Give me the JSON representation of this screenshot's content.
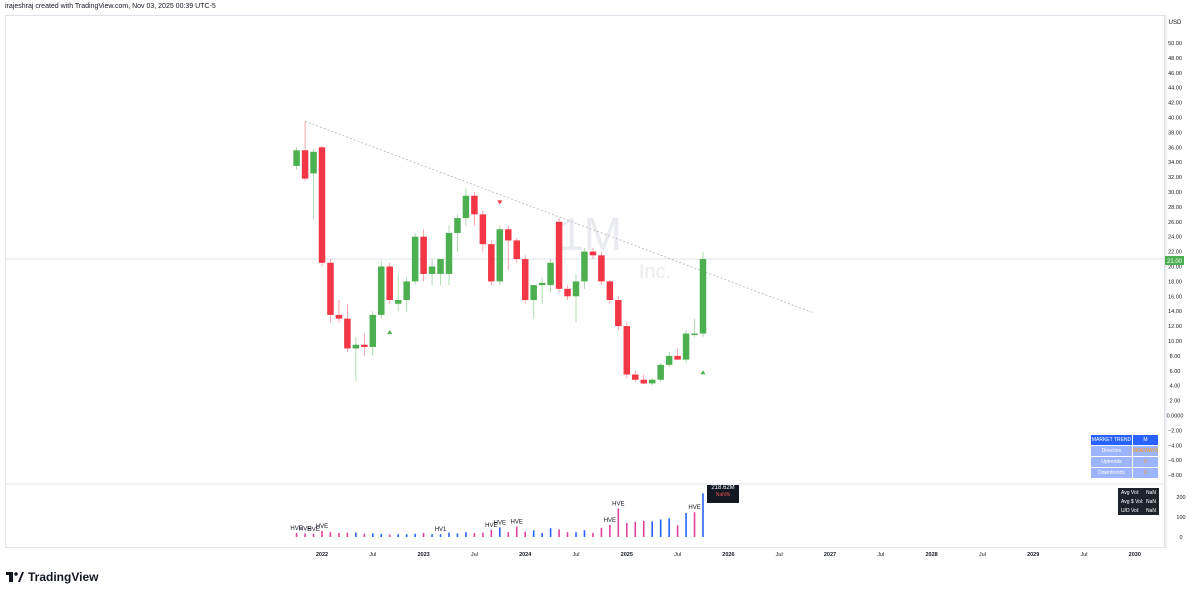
{
  "attribution": "irajeshraj created with TradingView.com, Nov 03, 2025 00:39 UTC-5",
  "brand": "TradingView",
  "currency": "USD",
  "watermark": {
    "symbol": "1M",
    "subtitle": "Inc."
  },
  "last_price": "21.00",
  "colors": {
    "up": "#4caf50",
    "down": "#f23645",
    "trendline": "#b2b5be",
    "vol_pink": "#e040a0",
    "vol_blue": "#2962ff"
  },
  "market_trend": {
    "title": "MARKET TREND",
    "title_value": "M",
    "rows": [
      {
        "label": "Direction",
        "value": "SIDEWAYS"
      },
      {
        "label": "Uptrends",
        "value": "0"
      },
      {
        "label": "Downtrends",
        "value": "0"
      }
    ]
  },
  "volume_info": [
    {
      "label": "Avg Vol:",
      "value": "NaN"
    },
    {
      "label": "Avg $ Vol:",
      "value": "NaN"
    },
    {
      "label": "U/D Vol:",
      "value": "NaN"
    }
  ],
  "volume_tooltip": {
    "value": "218.62M",
    "sub": "NaN%"
  },
  "chart_data": {
    "type": "candlestick",
    "timeframe": "1M",
    "y_ticks": [
      "50.00",
      "48.00",
      "46.00",
      "44.00",
      "42.00",
      "40.00",
      "38.00",
      "36.00",
      "34.00",
      "32.00",
      "30.00",
      "28.00",
      "26.00",
      "24.00",
      "22.00",
      "20.00",
      "18.00",
      "16.00",
      "14.00",
      "12.00",
      "10.00",
      "8.00",
      "6.00",
      "4.00",
      "2.00",
      "0.0000",
      "−2.00",
      "−4.00",
      "−6.00",
      "−8.00"
    ],
    "ylim": [
      -8,
      50
    ],
    "x_ticks": [
      "2022",
      "Jul",
      "2023",
      "Jul",
      "2024",
      "Jul",
      "2025",
      "Jul",
      "2026",
      "Jul",
      "2027",
      "Jul",
      "2028",
      "Jul",
      "2029",
      "Jul",
      "2030"
    ],
    "candles": [
      {
        "d": "2021-10",
        "o": 33.5,
        "h": 36.0,
        "l": 33.0,
        "c": 35.6
      },
      {
        "d": "2021-11",
        "o": 35.6,
        "h": 39.5,
        "l": 31.5,
        "c": 31.8
      },
      {
        "d": "2021-12",
        "o": 32.5,
        "h": 35.8,
        "l": 26.5,
        "c": 35.4
      },
      {
        "d": "2022-01",
        "o": 36.0,
        "h": 36.2,
        "l": 20.0,
        "c": 20.5
      },
      {
        "d": "2022-02",
        "o": 20.5,
        "h": 21.0,
        "l": 12.5,
        "c": 13.5
      },
      {
        "d": "2022-03",
        "o": 13.5,
        "h": 15.5,
        "l": 12.5,
        "c": 13.0
      },
      {
        "d": "2022-04",
        "o": 13.0,
        "h": 15.0,
        "l": 8.5,
        "c": 9.0
      },
      {
        "d": "2022-05",
        "o": 9.0,
        "h": 10.5,
        "l": 4.6,
        "c": 9.5
      },
      {
        "d": "2022-06",
        "o": 9.5,
        "h": 11.0,
        "l": 8.0,
        "c": 9.2
      },
      {
        "d": "2022-07",
        "o": 9.2,
        "h": 14.0,
        "l": 8.0,
        "c": 13.5
      },
      {
        "d": "2022-08",
        "o": 13.5,
        "h": 20.8,
        "l": 13.0,
        "c": 20.0
      },
      {
        "d": "2022-09",
        "o": 20.0,
        "h": 20.5,
        "l": 15.0,
        "c": 15.5
      },
      {
        "d": "2022-10",
        "o": 15.0,
        "h": 19.0,
        "l": 14.0,
        "c": 15.5
      },
      {
        "d": "2022-11",
        "o": 15.5,
        "h": 18.5,
        "l": 14.0,
        "c": 18.0
      },
      {
        "d": "2022-12",
        "o": 18.0,
        "h": 24.5,
        "l": 17.5,
        "c": 24.0
      },
      {
        "d": "2023-01",
        "o": 24.0,
        "h": 25.0,
        "l": 18.0,
        "c": 19.0
      },
      {
        "d": "2023-02",
        "o": 19.0,
        "h": 21.0,
        "l": 17.5,
        "c": 20.0
      },
      {
        "d": "2023-03",
        "o": 19.0,
        "h": 21.0,
        "l": 17.5,
        "c": 21.0
      },
      {
        "d": "2023-04",
        "o": 19.0,
        "h": 25.5,
        "l": 17.5,
        "c": 24.5
      },
      {
        "d": "2023-05",
        "o": 24.5,
        "h": 27.0,
        "l": 22.0,
        "c": 26.5
      },
      {
        "d": "2023-06",
        "o": 26.5,
        "h": 30.5,
        "l": 25.5,
        "c": 29.5
      },
      {
        "d": "2023-07",
        "o": 29.5,
        "h": 30.0,
        "l": 25.5,
        "c": 27.0
      },
      {
        "d": "2023-08",
        "o": 27.0,
        "h": 27.5,
        "l": 22.0,
        "c": 23.0
      },
      {
        "d": "2023-09",
        "o": 23.0,
        "h": 23.5,
        "l": 17.5,
        "c": 18.0
      },
      {
        "d": "2023-10",
        "o": 18.0,
        "h": 25.5,
        "l": 17.5,
        "c": 25.0
      },
      {
        "d": "2023-11",
        "o": 25.0,
        "h": 25.5,
        "l": 19.5,
        "c": 23.5
      },
      {
        "d": "2023-12",
        "o": 23.5,
        "h": 23.8,
        "l": 20.5,
        "c": 21.0
      },
      {
        "d": "2024-01",
        "o": 21.0,
        "h": 21.5,
        "l": 15.0,
        "c": 15.5
      },
      {
        "d": "2024-02",
        "o": 15.5,
        "h": 17.5,
        "l": 13.0,
        "c": 17.5
      },
      {
        "d": "2024-03",
        "o": 17.5,
        "h": 18.5,
        "l": 15.0,
        "c": 17.8
      },
      {
        "d": "2024-04",
        "o": 17.5,
        "h": 21.0,
        "l": 16.5,
        "c": 20.5
      },
      {
        "d": "2024-05",
        "o": 26.0,
        "h": 26.5,
        "l": 16.5,
        "c": 17.0
      },
      {
        "d": "2024-06",
        "o": 17.0,
        "h": 17.5,
        "l": 15.5,
        "c": 16.0
      },
      {
        "d": "2024-07",
        "o": 16.0,
        "h": 19.0,
        "l": 12.5,
        "c": 18.0
      },
      {
        "d": "2024-08",
        "o": 18.0,
        "h": 22.5,
        "l": 17.0,
        "c": 22.0
      },
      {
        "d": "2024-09",
        "o": 22.0,
        "h": 22.5,
        "l": 21.0,
        "c": 21.5
      },
      {
        "d": "2024-10",
        "o": 21.5,
        "h": 22.0,
        "l": 17.5,
        "c": 18.0
      },
      {
        "d": "2024-11",
        "o": 18.0,
        "h": 18.2,
        "l": 15.0,
        "c": 15.5
      },
      {
        "d": "2024-12",
        "o": 15.5,
        "h": 16.0,
        "l": 11.5,
        "c": 12.0
      },
      {
        "d": "2025-01",
        "o": 12.0,
        "h": 12.5,
        "l": 5.0,
        "c": 5.5
      },
      {
        "d": "2025-02",
        "o": 5.5,
        "h": 6.0,
        "l": 4.5,
        "c": 4.8
      },
      {
        "d": "2025-03",
        "o": 4.8,
        "h": 5.5,
        "l": 4.2,
        "c": 4.3
      },
      {
        "d": "2025-04",
        "o": 4.3,
        "h": 5.0,
        "l": 4.0,
        "c": 4.8
      },
      {
        "d": "2025-05",
        "o": 4.8,
        "h": 7.0,
        "l": 4.5,
        "c": 6.8
      },
      {
        "d": "2025-06",
        "o": 6.8,
        "h": 8.5,
        "l": 6.5,
        "c": 8.0
      },
      {
        "d": "2025-07",
        "o": 8.0,
        "h": 9.0,
        "l": 7.5,
        "c": 7.5
      },
      {
        "d": "2025-08",
        "o": 7.5,
        "h": 11.5,
        "l": 7.0,
        "c": 11.0
      },
      {
        "d": "2025-09",
        "o": 11.0,
        "h": 13.0,
        "l": 10.5,
        "c": 11.0
      },
      {
        "d": "2025-10",
        "o": 11.0,
        "h": 22.0,
        "l": 10.5,
        "c": 21.0
      }
    ],
    "trendline": {
      "from": {
        "d": "2021-11",
        "y": 39.5
      },
      "to": {
        "d": "2026-11",
        "y": 13.8
      }
    },
    "markers": [
      {
        "d": "2022-09",
        "y": 11.2,
        "dir": "up"
      },
      {
        "d": "2023-10",
        "y": 28.6,
        "dir": "down"
      },
      {
        "d": "2025-10",
        "y": 5.8,
        "dir": "up"
      }
    ],
    "volume": {
      "ylim": [
        0,
        250
      ],
      "y_ticks": [
        "200",
        "100",
        "0"
      ],
      "unit": "M",
      "bars": [
        {
          "d": "2021-10",
          "v": 20,
          "c": "pink"
        },
        {
          "d": "2021-11",
          "v": 18,
          "c": "pink"
        },
        {
          "d": "2021-12",
          "v": 16,
          "c": "pink"
        },
        {
          "d": "2022-01",
          "v": 30,
          "c": "pink"
        },
        {
          "d": "2022-02",
          "v": 24,
          "c": "pink"
        },
        {
          "d": "2022-03",
          "v": 20,
          "c": "pink"
        },
        {
          "d": "2022-04",
          "v": 22,
          "c": "pink"
        },
        {
          "d": "2022-05",
          "v": 22,
          "c": "blue"
        },
        {
          "d": "2022-06",
          "v": 16,
          "c": "pink"
        },
        {
          "d": "2022-07",
          "v": 18,
          "c": "blue"
        },
        {
          "d": "2022-08",
          "v": 16,
          "c": "blue"
        },
        {
          "d": "2022-09",
          "v": 12,
          "c": "pink"
        },
        {
          "d": "2022-10",
          "v": 14,
          "c": "blue"
        },
        {
          "d": "2022-11",
          "v": 14,
          "c": "blue"
        },
        {
          "d": "2022-12",
          "v": 16,
          "c": "blue"
        },
        {
          "d": "2023-01",
          "v": 20,
          "c": "pink"
        },
        {
          "d": "2023-02",
          "v": 14,
          "c": "blue"
        },
        {
          "d": "2023-03",
          "v": 14,
          "c": "blue"
        },
        {
          "d": "2023-04",
          "v": 22,
          "c": "blue"
        },
        {
          "d": "2023-05",
          "v": 18,
          "c": "blue"
        },
        {
          "d": "2023-06",
          "v": 24,
          "c": "blue"
        },
        {
          "d": "2023-07",
          "v": 20,
          "c": "pink"
        },
        {
          "d": "2023-08",
          "v": 22,
          "c": "pink"
        },
        {
          "d": "2023-09",
          "v": 36,
          "c": "pink"
        },
        {
          "d": "2023-10",
          "v": 48,
          "c": "blue"
        },
        {
          "d": "2023-11",
          "v": 24,
          "c": "pink"
        },
        {
          "d": "2023-12",
          "v": 52,
          "c": "pink"
        },
        {
          "d": "2024-01",
          "v": 26,
          "c": "pink"
        },
        {
          "d": "2024-02",
          "v": 34,
          "c": "blue"
        },
        {
          "d": "2024-03",
          "v": 20,
          "c": "blue"
        },
        {
          "d": "2024-04",
          "v": 44,
          "c": "blue"
        },
        {
          "d": "2024-05",
          "v": 38,
          "c": "pink"
        },
        {
          "d": "2024-06",
          "v": 24,
          "c": "pink"
        },
        {
          "d": "2024-07",
          "v": 24,
          "c": "blue"
        },
        {
          "d": "2024-08",
          "v": 34,
          "c": "blue"
        },
        {
          "d": "2024-09",
          "v": 20,
          "c": "pink"
        },
        {
          "d": "2024-10",
          "v": 46,
          "c": "pink"
        },
        {
          "d": "2024-11",
          "v": 60,
          "c": "pink"
        },
        {
          "d": "2024-12",
          "v": 142,
          "c": "pink"
        },
        {
          "d": "2025-01",
          "v": 70,
          "c": "pink"
        },
        {
          "d": "2025-02",
          "v": 76,
          "c": "pink"
        },
        {
          "d": "2025-03",
          "v": 80,
          "c": "pink"
        },
        {
          "d": "2025-04",
          "v": 78,
          "c": "blue"
        },
        {
          "d": "2025-05",
          "v": 88,
          "c": "blue"
        },
        {
          "d": "2025-06",
          "v": 94,
          "c": "blue"
        },
        {
          "d": "2025-07",
          "v": 58,
          "c": "pink"
        },
        {
          "d": "2025-08",
          "v": 120,
          "c": "blue"
        },
        {
          "d": "2025-09",
          "v": 124,
          "c": "pink"
        },
        {
          "d": "2025-10",
          "v": 218.62,
          "c": "blue"
        }
      ],
      "labels": [
        {
          "d": "2021-10",
          "text": "HVE"
        },
        {
          "d": "2021-11",
          "text": "HVE"
        },
        {
          "d": "2021-12",
          "text": "HVE"
        },
        {
          "d": "2022-01",
          "text": "HVE"
        },
        {
          "d": "2023-03",
          "text": "HV1"
        },
        {
          "d": "2023-09",
          "text": "HVE"
        },
        {
          "d": "2023-10",
          "text": "HVE"
        },
        {
          "d": "2023-12",
          "text": "HVE"
        },
        {
          "d": "2024-11",
          "text": "HVE"
        },
        {
          "d": "2024-12",
          "text": "HVE"
        },
        {
          "d": "2025-09",
          "text": "HVE"
        }
      ]
    }
  }
}
